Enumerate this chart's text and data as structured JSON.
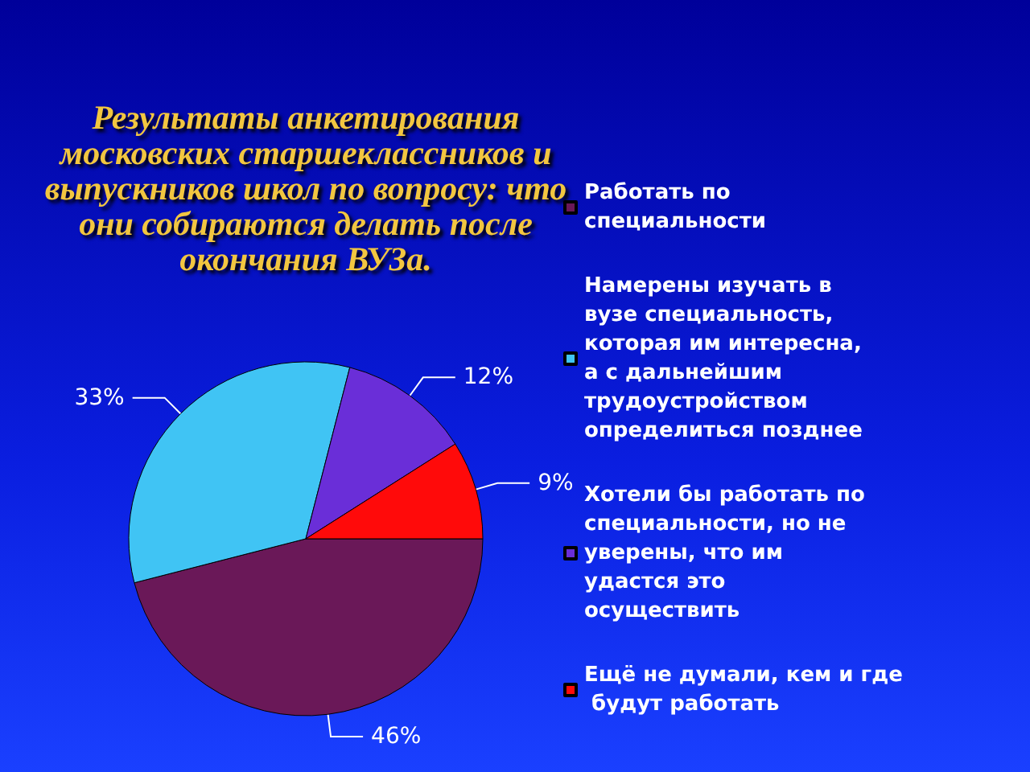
{
  "chart_data": {
    "type": "pie",
    "title": "Результаты анкетирования московских старшеклассников и выпускников школ по вопросу: что они собираются делать после окончания ВУЗа.",
    "categories": [
      "Работать по специальности",
      "Намерены изучать в вузе специальность, которая им интересна, а с дальнейшим трудоустройством определиться позднее",
      "Хотели бы работать по специальности, но не уверены, что им удастся это осуществить",
      "Ещё не думали, кем и где будут работать"
    ],
    "values": [
      46,
      33,
      12,
      9
    ],
    "colors": [
      "#6a1858",
      "#40c4f4",
      "#6a2ed8",
      "#ff0a0a"
    ],
    "value_labels": [
      "46%",
      "33%",
      "12%",
      "9%"
    ],
    "legend": "right"
  }
}
